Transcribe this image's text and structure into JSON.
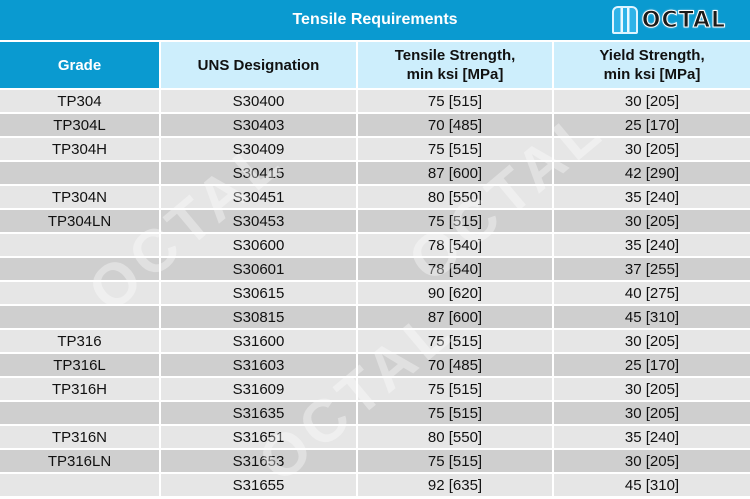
{
  "title": "Tensile Requirements",
  "logo": "OCTAL",
  "headers": {
    "grade": "Grade",
    "uns": "UNS Designation",
    "tensile_1": "Tensile Strength,",
    "tensile_2": "min ksi [MPa]",
    "yield_1": "Yield Strength,",
    "yield_2": "min ksi [MPa]"
  },
  "rows": [
    [
      "TP304",
      "S30400",
      "75 [515]",
      "30 [205]"
    ],
    [
      "TP304L",
      "S30403",
      "70 [485]",
      "25 [170]"
    ],
    [
      "TP304H",
      "S30409",
      "75 [515]",
      "30 [205]"
    ],
    [
      "",
      "S30415",
      "87 [600]",
      "42 [290]"
    ],
    [
      "TP304N",
      "S30451",
      "80 [550]",
      "35 [240]"
    ],
    [
      "TP304LN",
      "S30453",
      "75 [515]",
      "30 [205]"
    ],
    [
      "",
      "S30600",
      "78 [540]",
      "35 [240]"
    ],
    [
      "",
      "S30601",
      "78 [540]",
      "37 [255]"
    ],
    [
      "",
      "S30615",
      "90 [620]",
      "40 [275]"
    ],
    [
      "",
      "S30815",
      "87 [600]",
      "45 [310]"
    ],
    [
      "TP316",
      "S31600",
      "75 [515]",
      "30 [205]"
    ],
    [
      "TP316L",
      "S31603",
      "70 [485]",
      "25 [170]"
    ],
    [
      "TP316H",
      "S31609",
      "75 [515]",
      "30 [205]"
    ],
    [
      "",
      "S31635",
      "75 [515]",
      "30 [205]"
    ],
    [
      "TP316N",
      "S31651",
      "80 [550]",
      "35 [240]"
    ],
    [
      "TP316LN",
      "S31653",
      "75 [515]",
      "30 [205]"
    ],
    [
      "",
      "S31655",
      "92 [635]",
      "45 [310]"
    ]
  ]
}
